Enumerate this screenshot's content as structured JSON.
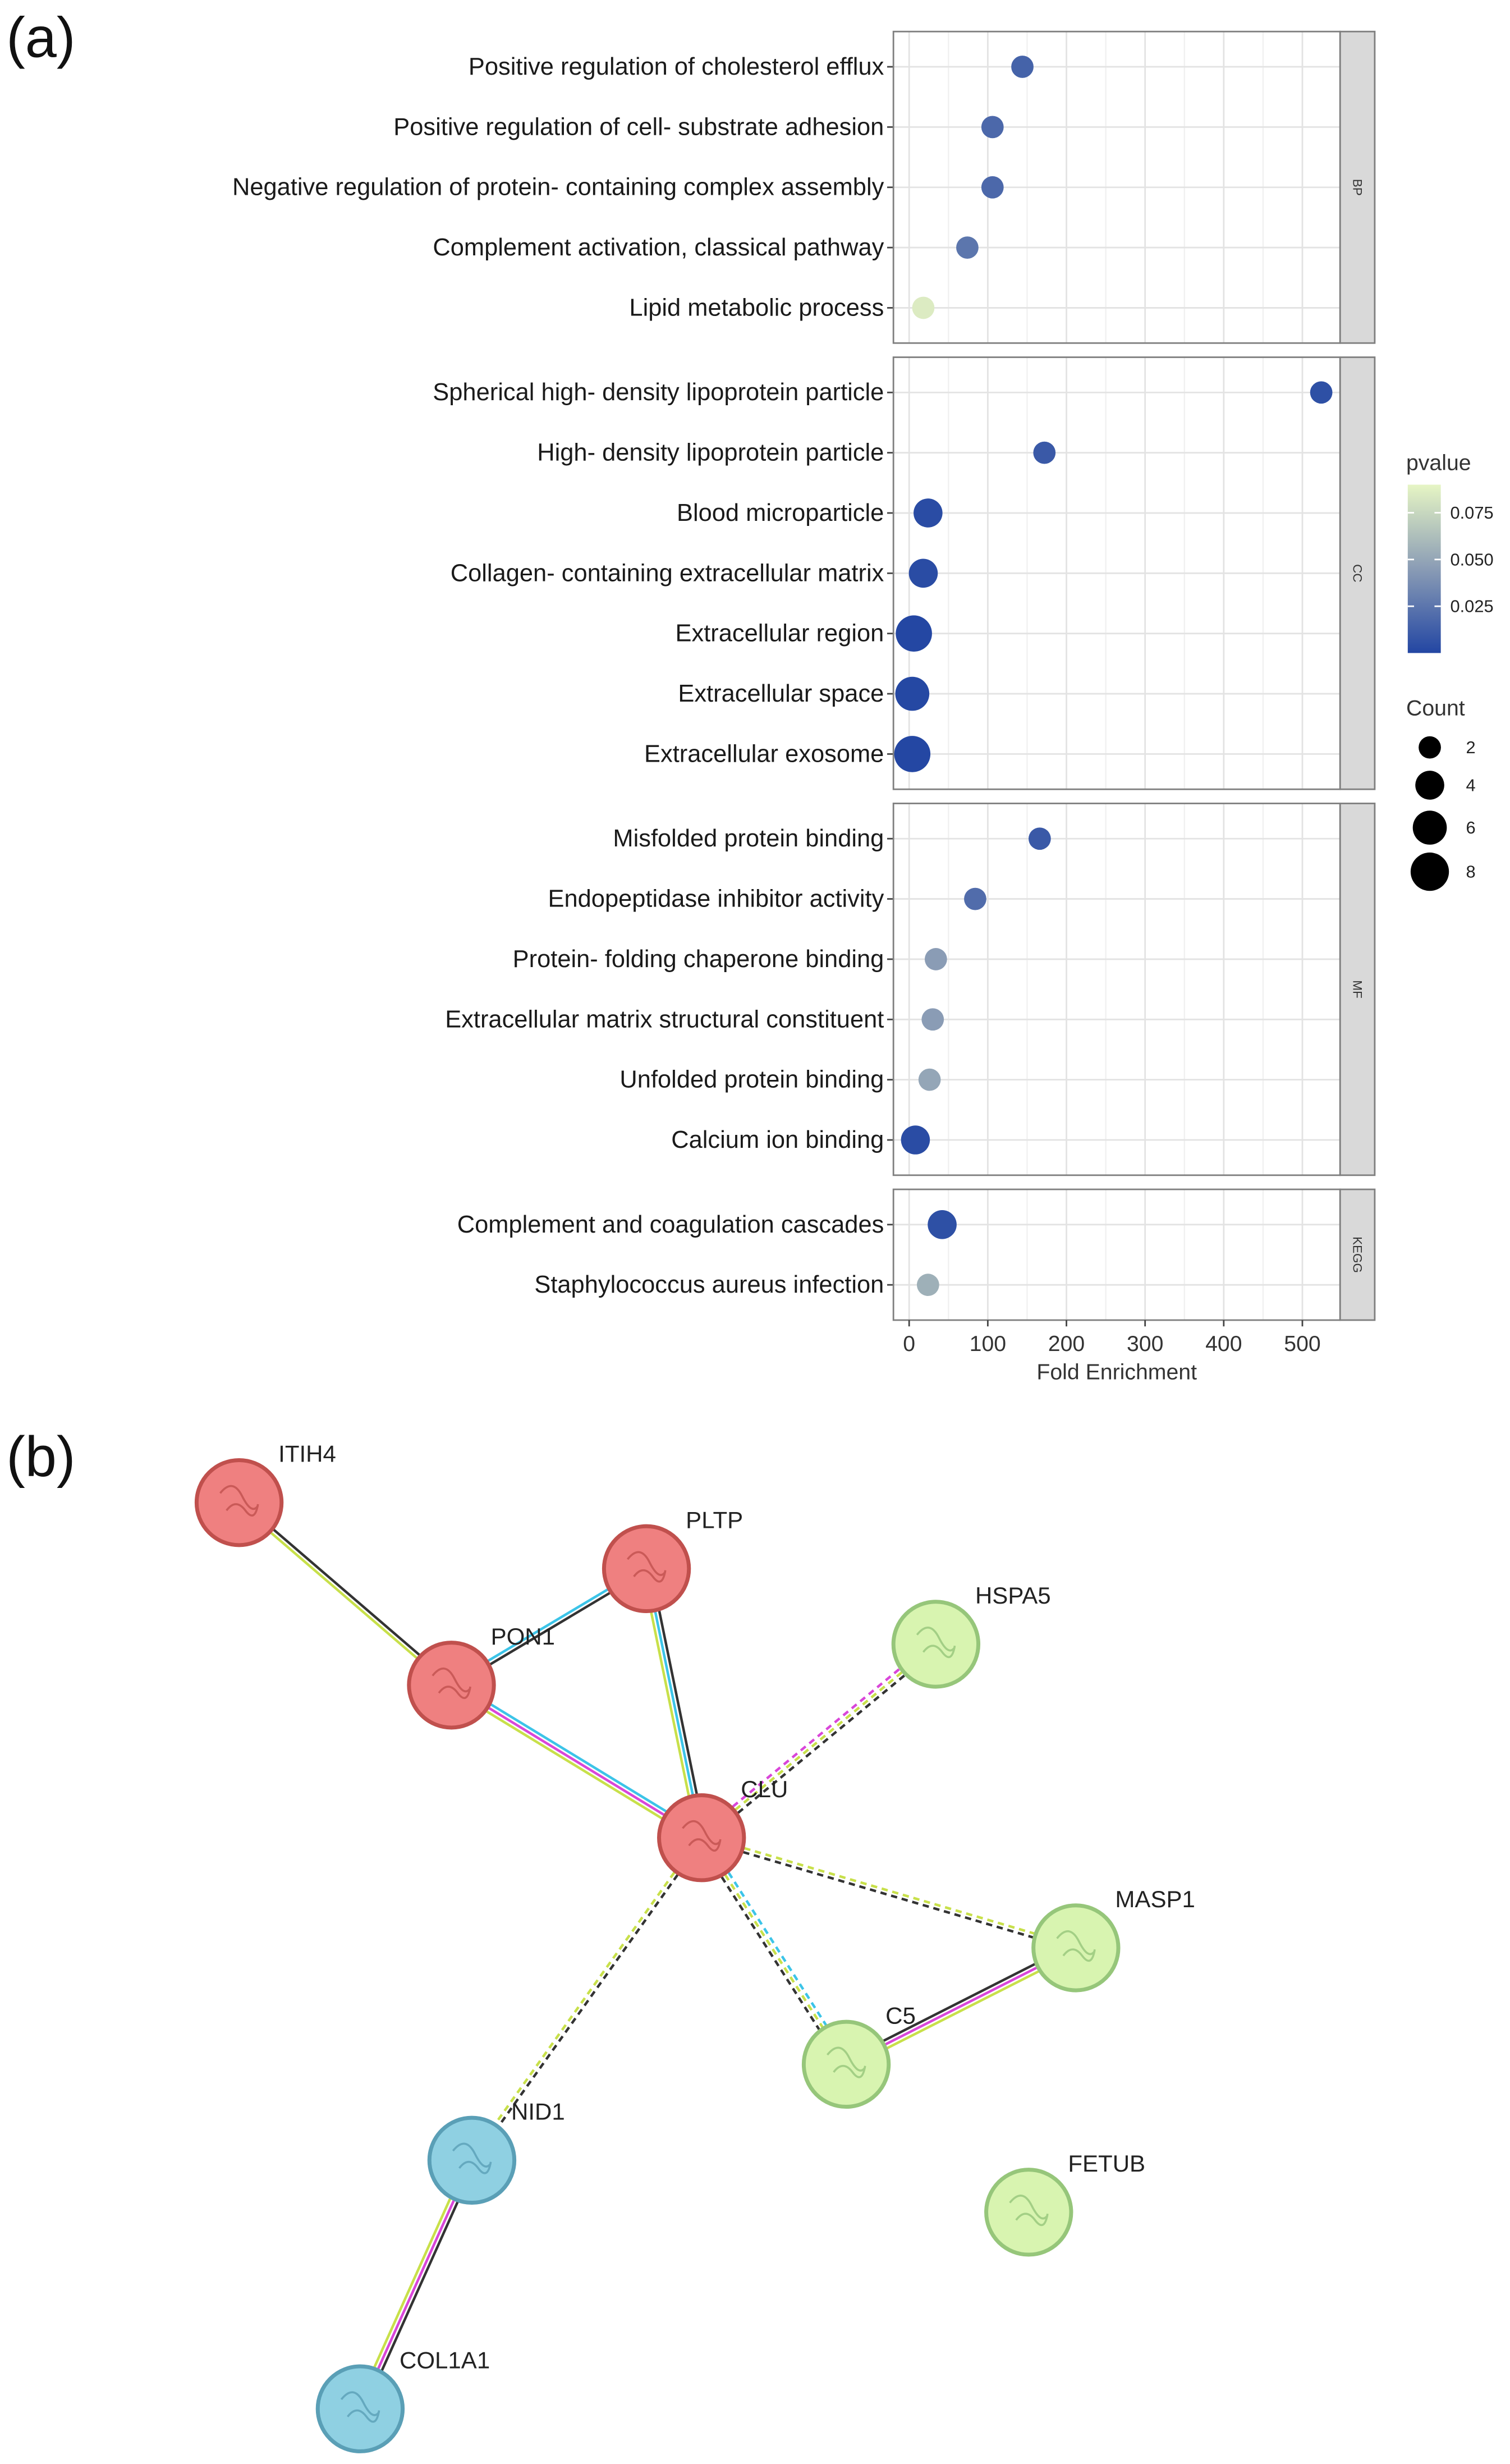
{
  "panel_labels": [
    "(a)",
    "(b)"
  ],
  "chart_data": {
    "type": "dot",
    "x_label": "Fold Enrichment",
    "xlim": [
      -20,
      548
    ],
    "xticks": [
      0,
      100,
      200,
      300,
      400,
      500
    ],
    "grid": true,
    "color_title": "pvalue",
    "color_lim": [
      0,
      0.09
    ],
    "color_ticks": [
      0.025,
      {
        "value": 0.05,
        "label": "0.050"
      },
      0.075
    ],
    "colors": [
      "#2346a3",
      "#8a9cb5",
      "#e6f5c4"
    ],
    "size_title": "Count",
    "size_ticks": [
      2,
      4,
      6,
      8
    ],
    "facets": [
      {
        "name": "BP",
        "categories": [
          "Positive regulation of cholesterol efflux",
          "Positive regulation of cell- substrate adhesion",
          "Negative regulation of protein- containing complex assembly",
          "Complement activation, classical pathway",
          "Lipid metabolic process"
        ],
        "values": [
          144,
          106,
          106,
          74,
          18
        ],
        "count": [
          2,
          2,
          2,
          2,
          2
        ],
        "pvalue": [
          0.015,
          0.018,
          0.018,
          0.025,
          0.085
        ]
      },
      {
        "name": "CC",
        "categories": [
          "Spherical high- density lipoprotein particle",
          "High- density lipoprotein particle",
          "Blood microparticle",
          "Collagen- containing extracellular matrix",
          "Extracellular region",
          "Extracellular space",
          "Extracellular exosome"
        ],
        "values": [
          524,
          172,
          24,
          18,
          6,
          4,
          4
        ],
        "count": [
          2,
          2,
          4,
          4,
          7,
          6,
          7
        ],
        "pvalue": [
          0.005,
          0.01,
          0.003,
          0.003,
          0.0005,
          0.001,
          0.0005
        ]
      },
      {
        "name": "MF",
        "categories": [
          "Misfolded protein binding",
          "Endopeptidase inhibitor activity",
          "Protein- folding chaperone binding",
          "Extracellular matrix structural constituent",
          "Unfolded protein binding",
          "Calcium ion binding"
        ],
        "values": [
          166,
          84,
          34,
          30,
          26,
          8
        ],
        "count": [
          2,
          2,
          2,
          2,
          2,
          4
        ],
        "pvalue": [
          0.01,
          0.02,
          0.045,
          0.045,
          0.05,
          0.003
        ]
      },
      {
        "name": "KEGG",
        "categories": [
          "Complement and coagulation cascades",
          "Staphylococcus aureus infection"
        ],
        "values": [
          42,
          24
        ],
        "count": [
          4,
          2
        ],
        "pvalue": [
          0.005,
          0.055
        ]
      }
    ]
  },
  "network": {
    "nodes": [
      {
        "label": "ITIH4",
        "color": "#ef8080",
        "border": "#c0504d"
      },
      {
        "label": "PLTP",
        "color": "#ef8080",
        "border": "#c0504d"
      },
      {
        "label": "PON1",
        "color": "#ef8080",
        "border": "#c0504d"
      },
      {
        "label": "HSPA5",
        "color": "#d8f4b0",
        "border": "#96c67a"
      },
      {
        "label": "CLU",
        "color": "#ef8080",
        "border": "#c0504d"
      },
      {
        "label": "MASP1",
        "color": "#d8f4b0",
        "border": "#96c67a"
      },
      {
        "label": "C5",
        "color": "#d8f4b0",
        "border": "#96c67a"
      },
      {
        "label": "NID1",
        "color": "#8fd0e2",
        "border": "#5a9fb6"
      },
      {
        "label": "FETUB",
        "color": "#d8f4b0",
        "border": "#96c67a"
      },
      {
        "label": "COL1A1",
        "color": "#8fd0e2",
        "border": "#5a9fb6"
      }
    ],
    "edges": [
      {
        "source": 0,
        "target": 2,
        "dashed": false,
        "colors": [
          "#333333",
          "#c8e04a"
        ]
      },
      {
        "source": 2,
        "target": 1,
        "dashed": false,
        "colors": [
          "#3cc4e8",
          "#333333"
        ]
      },
      {
        "source": 2,
        "target": 4,
        "dashed": false,
        "colors": [
          "#3cc4e8",
          "#d946d9",
          "#c8e04a"
        ]
      },
      {
        "source": 1,
        "target": 4,
        "dashed": false,
        "colors": [
          "#333333",
          "#3cc4e8",
          "#c8e04a"
        ]
      },
      {
        "source": 4,
        "target": 3,
        "dashed": true,
        "colors": [
          "#d946d9",
          "#c8e04a",
          "#333333"
        ]
      },
      {
        "source": 4,
        "target": 5,
        "dashed": true,
        "colors": [
          "#c8e04a",
          "#333333"
        ]
      },
      {
        "source": 4,
        "target": 6,
        "dashed": true,
        "colors": [
          "#3cc4e8",
          "#c8e04a",
          "#333333"
        ]
      },
      {
        "source": 4,
        "target": 7,
        "dashed": true,
        "colors": [
          "#333333",
          "#c8e04a"
        ]
      },
      {
        "source": 6,
        "target": 5,
        "dashed": false,
        "colors": [
          "#333333",
          "#d946d9",
          "#c8e04a"
        ]
      },
      {
        "source": 7,
        "target": 9,
        "dashed": false,
        "colors": [
          "#333333",
          "#d946d9",
          "#c8e04a"
        ]
      }
    ]
  }
}
